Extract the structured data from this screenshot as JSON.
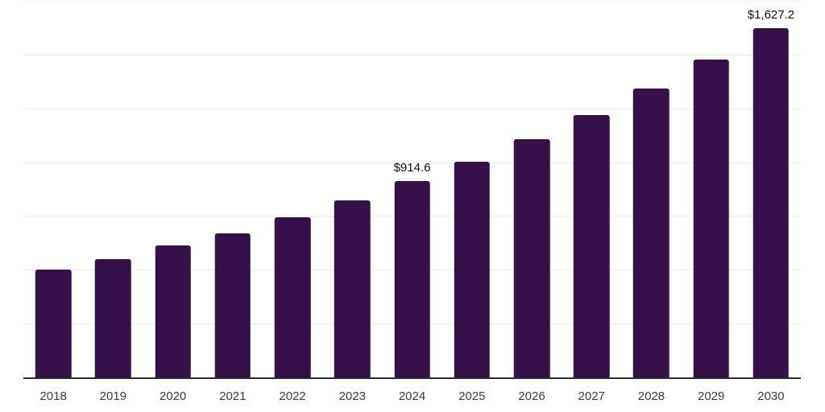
{
  "chart_data": {
    "type": "bar",
    "categories": [
      "2018",
      "2019",
      "2020",
      "2021",
      "2022",
      "2023",
      "2024",
      "2025",
      "2026",
      "2027",
      "2028",
      "2029",
      "2030"
    ],
    "values": [
      503,
      555,
      617,
      675,
      748,
      827,
      914.6,
      1007,
      1109,
      1221,
      1346,
      1480,
      1627.2
    ],
    "data_labels": {
      "2024": "$914.6",
      "2030": "$1,627.2"
    },
    "title": "",
    "xlabel": "",
    "ylabel": "",
    "ylim": [
      0,
      1750
    ],
    "gridline_step": 250,
    "grid": "horizontal",
    "legend_position": "none",
    "y_axis_ticks_visible": false,
    "colors": {
      "bar": "#341249",
      "gridline": "#efefef",
      "axis_line": "#2d2d2d",
      "tick_label": "#3c3c3c",
      "data_label": "#111111",
      "background": "#ffffff"
    }
  }
}
